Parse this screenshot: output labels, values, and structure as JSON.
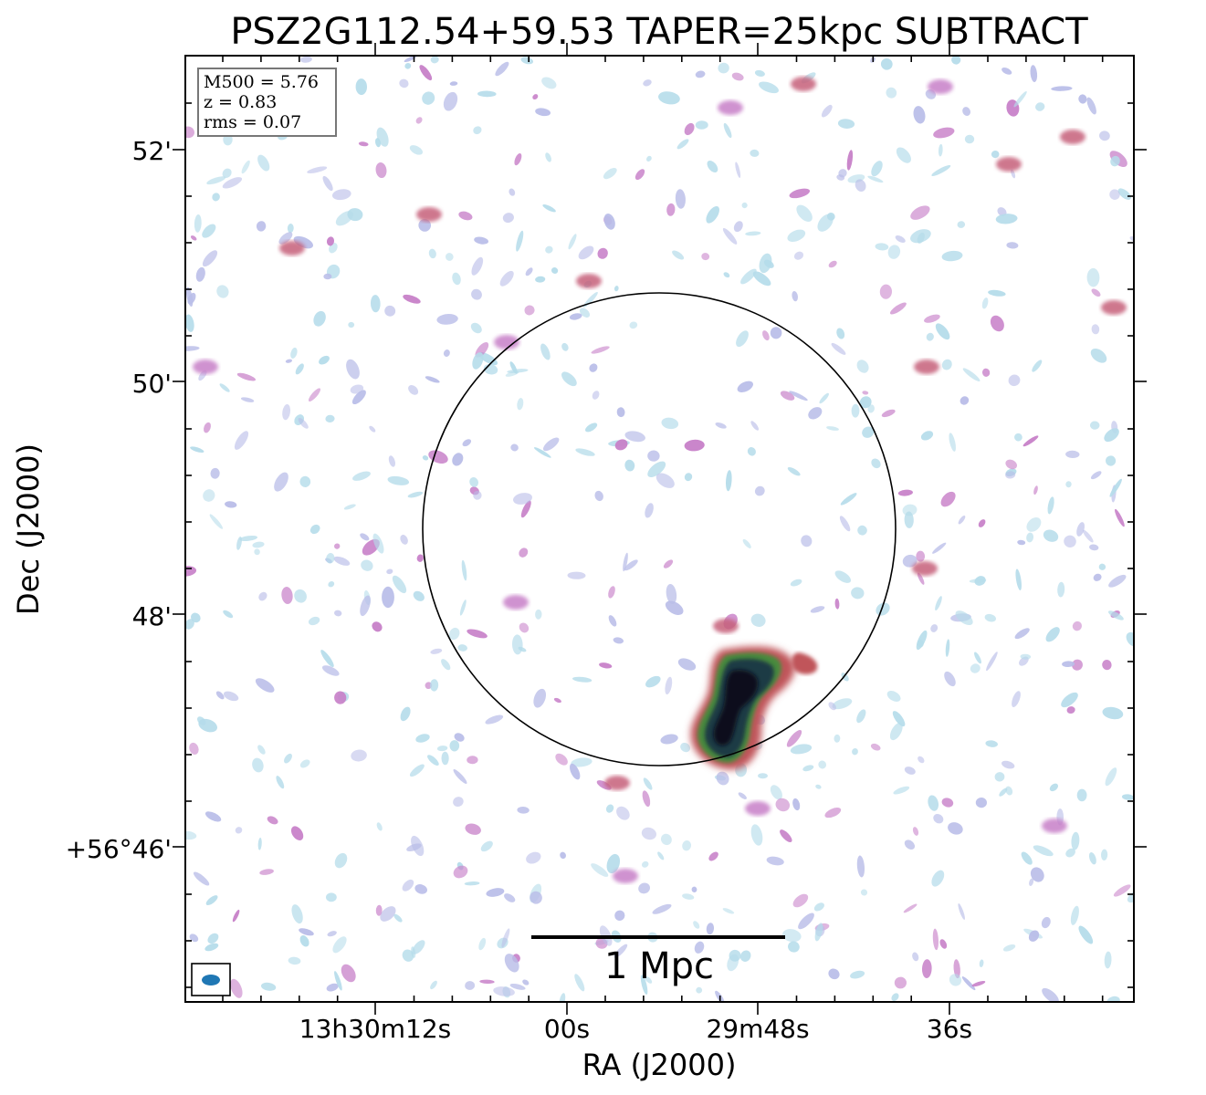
{
  "figure": {
    "title": "PSZ2G112.54+59.53 TAPER=25kpc SUBTRACT",
    "xlabel": "RA (J2000)",
    "ylabel": "Dec (J2000)"
  },
  "info_box": {
    "line1": "M500 = 5.76",
    "line2": "z = 0.83",
    "line3": "rms = 0.07"
  },
  "ra_ticks": [
    "13h30m12s",
    "00s",
    "29m48s",
    "36s"
  ],
  "dec_ticks": [
    "52'",
    "50'",
    "48'",
    "+56°46'"
  ],
  "scale_bar": {
    "label": "1 Mpc"
  },
  "colors": {
    "axes": "#000000",
    "beam": "#1f77b4",
    "noise_light": "#b5dcea",
    "noise_mid": "#b9bde8",
    "noise_magenta": "#c77fc8",
    "noise_red": "#c6607a",
    "source_core": "#0d0d1e",
    "source_mid": "#1d3b45",
    "source_green": "#4a8a3c",
    "source_red": "#c0555a"
  }
}
